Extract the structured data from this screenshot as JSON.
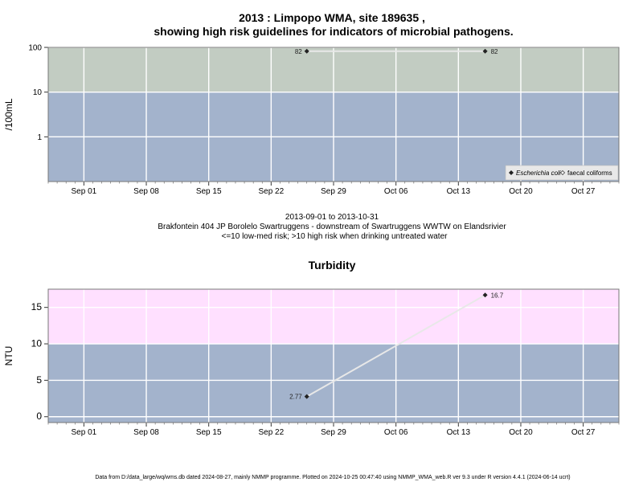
{
  "chart_data": [
    {
      "type": "line",
      "title": "2013 : Limpopo WMA, site 189635 ,",
      "subtitle": "showing high risk guidelines for indicators of microbial pathogens.",
      "ylabel": "/100mL",
      "y_scale": "log",
      "ylim": [
        0.1,
        100
      ],
      "yticks": [
        "1",
        "10",
        "100"
      ],
      "x_range": [
        "2013-08-28",
        "2013-10-31"
      ],
      "xticks": [
        "Sep 01",
        "Sep 08",
        "Sep 15",
        "Sep 22",
        "Sep 29",
        "Oct 06",
        "Oct 13",
        "Oct 20",
        "Oct 27"
      ],
      "bands": [
        {
          "from": 0.1,
          "to": 10,
          "color": "#a3b3cc"
        },
        {
          "from": 10,
          "to": 100,
          "color": "#c2ccc2"
        }
      ],
      "series": [
        {
          "name": "Escherichia coli",
          "color": "#e8e8e8",
          "points": [
            {
              "x": "2013-09-26",
              "y": 82,
              "label": "82"
            },
            {
              "x": "2013-10-16",
              "y": 82,
              "label": "82"
            }
          ]
        }
      ],
      "legend": {
        "placement": "bottom-right",
        "entries": [
          {
            "label": "Escherichia coli",
            "marker": "filled-diamond"
          },
          {
            "label": "faecal coliforms",
            "marker": "open-diamond"
          }
        ]
      },
      "grid": true
    },
    {
      "type": "line",
      "title": "Turbidity",
      "ylabel": "NTU",
      "ylim": [
        -0.8,
        17.5
      ],
      "yticks": [
        0,
        5,
        10,
        15
      ],
      "x_range": [
        "2013-08-28",
        "2013-10-31"
      ],
      "xticks": [
        "Sep 01",
        "Sep 08",
        "Sep 15",
        "Sep 22",
        "Sep 29",
        "Oct 06",
        "Oct 13",
        "Oct 20",
        "Oct 27"
      ],
      "bands": [
        {
          "from": -0.8,
          "to": 10,
          "color": "#a3b3cc"
        },
        {
          "from": 10,
          "to": 17.5,
          "color": "#ffe0ff"
        }
      ],
      "series": [
        {
          "name": "Turbidity",
          "color": "#e8e8e8",
          "points": [
            {
              "x": "2013-09-26",
              "y": 2.77,
              "label": "2.77"
            },
            {
              "x": "2013-10-16",
              "y": 16.7,
              "label": "16.7"
            }
          ]
        }
      ],
      "grid": true
    }
  ],
  "caption": {
    "date_range": "2013-09-01 to 2013-10-31",
    "site_description": "Brakfontein 404 JP Borolelo Swartruggens - downstream of Swartruggens WWTW on Elandsrivier",
    "risk_note": "<=10 low-med risk; >10 high risk when drinking untreated water"
  },
  "footer": "Data from D:/data_large/wq/wms.db dated 2024-08-27, mainly NMMP programme. Plotted on 2024-10-25 00:47:40 using NMMP_WMA_web.R ver 9.3 under R version 4.4.1 (2024-06-14 ucrt)"
}
